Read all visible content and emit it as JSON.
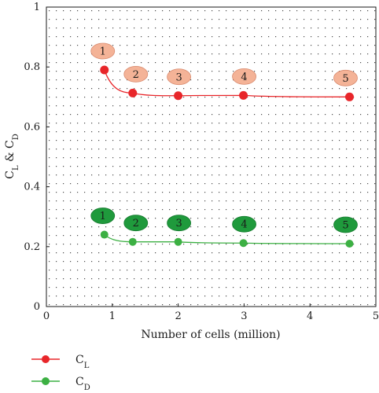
{
  "chart_data": {
    "type": "line",
    "title": "",
    "xlabel": "Number of cells (million)",
    "ylabel": {
      "main": "C",
      "sub1": "L",
      "mid": " & C",
      "sub2": "D"
    },
    "xlim": [
      0,
      5
    ],
    "ylim": [
      0,
      1
    ],
    "x_ticks": [
      "0",
      "1",
      "2",
      "3",
      "4",
      "5"
    ],
    "y_ticks": [
      "0",
      "0.2",
      "0.4",
      "0.6",
      "0.8",
      "1"
    ],
    "grid": "dotted",
    "legend_position": "bottom-left",
    "series": [
      {
        "name": "L",
        "legend_main": "C",
        "color": "#e8262a",
        "bubble_fill": "#f4b397",
        "x": [
          0.88,
          1.31,
          2.0,
          2.99,
          4.6
        ],
        "y": [
          0.79,
          0.713,
          0.704,
          0.705,
          0.7
        ],
        "point_labels": [
          "1",
          "2",
          "3",
          "4",
          "5"
        ]
      },
      {
        "name": "D",
        "legend_main": "C",
        "color": "#3cb043",
        "bubble_fill": "#1f9a3c",
        "x": [
          0.88,
          1.31,
          2.0,
          2.99,
          4.6
        ],
        "y": [
          0.24,
          0.216,
          0.216,
          0.212,
          0.21
        ],
        "point_labels": [
          "1",
          "2",
          "3",
          "4",
          "5"
        ]
      }
    ]
  }
}
